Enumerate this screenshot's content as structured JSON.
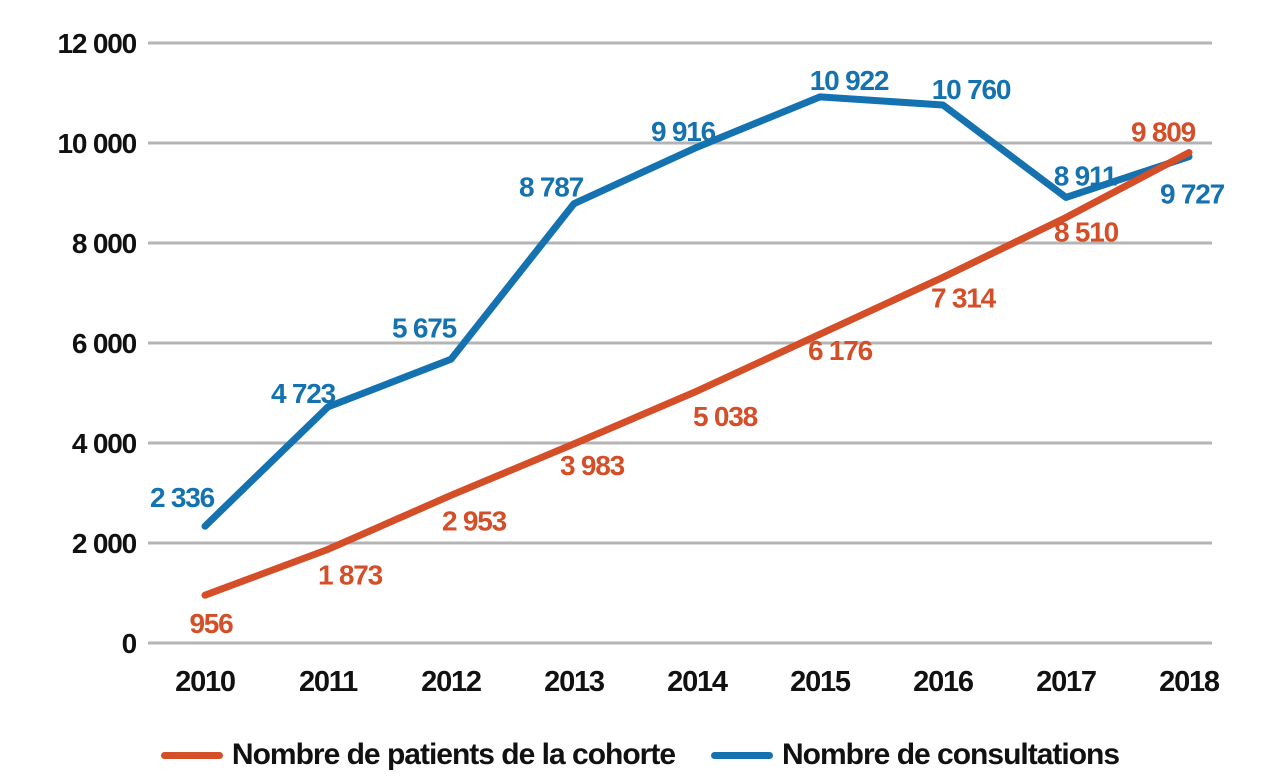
{
  "chart_data": {
    "type": "line",
    "title": "",
    "xlabel": "",
    "ylabel": "",
    "x_labels": [
      "2010",
      "2011",
      "2012",
      "2013",
      "2014",
      "2015",
      "2016",
      "2017",
      "2018"
    ],
    "y_axis": {
      "min": 0,
      "max": 12000,
      "tick_step": 2000,
      "tick_labels": [
        "0",
        "2 000",
        "4 000",
        "6 000",
        "8 000",
        "10 000",
        "12 000"
      ]
    },
    "grid": "horizontal gridlines only",
    "legend_position": "bottom center",
    "colors": {
      "gridline": "#b4b4b4",
      "axis_text": "#111111",
      "background": "#ffffff"
    },
    "series": [
      {
        "id": "patients",
        "name": "Nombre de patients de la cohorte",
        "color": "#d44e28",
        "values": [
          956,
          1873,
          2953,
          3983,
          5038,
          6176,
          7314,
          8510,
          9809
        ],
        "value_labels": [
          "956",
          "1 873",
          "2 953",
          "3 983",
          "5 038",
          "6 176",
          "7 314",
          "8 510",
          "9 809"
        ],
        "label_offsets": [
          [
            6,
            28
          ],
          [
            22,
            25
          ],
          [
            23,
            25
          ],
          [
            18,
            21
          ],
          [
            28,
            25
          ],
          [
            20,
            16
          ],
          [
            20,
            20
          ],
          [
            20,
            14
          ],
          [
            -26,
            -21
          ]
        ],
        "z": 1
      },
      {
        "id": "consultations",
        "name": "Nombre de consultations",
        "color": "#1472b0",
        "values": [
          2336,
          4723,
          5675,
          8787,
          9916,
          10922,
          10760,
          8911,
          9727
        ],
        "value_labels": [
          "2 336",
          "4 723",
          "5 675",
          "8 787",
          "9 916",
          "10 922",
          "10 760",
          "8 911",
          "9 727"
        ],
        "label_offsets": [
          [
            -23,
            -29
          ],
          [
            -25,
            -14
          ],
          [
            -27,
            -32
          ],
          [
            -23,
            -17
          ],
          [
            -14,
            -16
          ],
          [
            29,
            -17
          ],
          [
            28,
            -16
          ],
          [
            19,
            -22
          ],
          [
            3,
            37
          ]
        ],
        "z": 0
      }
    ]
  }
}
